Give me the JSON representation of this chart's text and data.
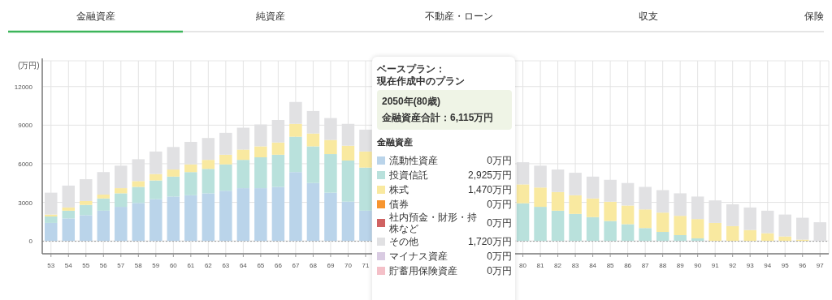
{
  "chart_data": {
    "type": "bar",
    "stacked": true,
    "ylabel": "(万円)",
    "categories": [
      "53",
      "54",
      "55",
      "56",
      "57",
      "58",
      "59",
      "60",
      "61",
      "62",
      "63",
      "64",
      "65",
      "66",
      "67",
      "68",
      "69",
      "70",
      "71",
      null,
      null,
      null,
      null,
      null,
      null,
      null,
      null,
      "80",
      "81",
      "82",
      "83",
      "84",
      "85",
      "86",
      "87",
      "88",
      "89",
      "90",
      "91",
      "92",
      "93",
      "94",
      "95",
      "96",
      "97"
    ],
    "series": [
      {
        "name": "流動性資産",
        "color": "#bad4ea",
        "values": [
          1400,
          1750,
          2000,
          2350,
          2650,
          2950,
          3250,
          3450,
          3550,
          3700,
          3900,
          4100,
          4100,
          4200,
          5350,
          4500,
          3750,
          3050,
          2350,
          null,
          null,
          null,
          null,
          null,
          null,
          null,
          null,
          0,
          0,
          0,
          0,
          0,
          0,
          0,
          0,
          0,
          0,
          0,
          0,
          0,
          0,
          0,
          0,
          0,
          0
        ]
      },
      {
        "name": "投資信託",
        "color": "#b9e1dc",
        "values": [
          500,
          600,
          800,
          950,
          1050,
          1250,
          1450,
          1550,
          1800,
          1900,
          2050,
          2200,
          2400,
          2500,
          2750,
          2850,
          3000,
          3200,
          3350,
          null,
          null,
          null,
          null,
          null,
          null,
          null,
          null,
          2925,
          2650,
          2350,
          2100,
          1850,
          1550,
          1300,
          1000,
          700,
          450,
          200,
          0,
          0,
          0,
          0,
          0,
          0,
          0
        ]
      },
      {
        "name": "株式",
        "color": "#f9e9a0",
        "values": [
          150,
          250,
          300,
          300,
          400,
          450,
          500,
          550,
          600,
          700,
          750,
          800,
          850,
          950,
          1000,
          1000,
          1100,
          1150,
          1250,
          null,
          null,
          null,
          null,
          null,
          null,
          null,
          null,
          1470,
          1500,
          1450,
          1450,
          1450,
          1500,
          1450,
          1450,
          1500,
          1500,
          1500,
          1400,
          1150,
          850,
          600,
          350,
          100,
          0
        ]
      },
      {
        "name": "債券",
        "color": "#f7952f",
        "values": [
          0,
          0,
          0,
          0,
          0,
          0,
          0,
          0,
          0,
          0,
          0,
          0,
          0,
          0,
          0,
          0,
          0,
          0,
          0,
          null,
          null,
          null,
          null,
          null,
          null,
          null,
          null,
          0,
          0,
          0,
          0,
          0,
          0,
          0,
          0,
          0,
          0,
          0,
          0,
          0,
          0,
          0,
          0,
          0,
          0
        ]
      },
      {
        "name": "社内預金・財形・持株など",
        "color": "#d06262",
        "values": [
          0,
          0,
          0,
          0,
          0,
          0,
          0,
          0,
          0,
          0,
          0,
          0,
          0,
          0,
          0,
          0,
          0,
          0,
          0,
          null,
          null,
          null,
          null,
          null,
          null,
          null,
          null,
          0,
          0,
          0,
          0,
          0,
          0,
          0,
          0,
          0,
          0,
          0,
          0,
          0,
          0,
          0,
          0,
          0,
          0
        ]
      },
      {
        "name": "その他",
        "color": "#e1e1e3",
        "values": [
          1700,
          1700,
          1700,
          1750,
          1750,
          1700,
          1750,
          1750,
          1750,
          1700,
          1700,
          1700,
          1700,
          1750,
          1700,
          1750,
          1700,
          1700,
          1700,
          null,
          null,
          null,
          null,
          null,
          null,
          null,
          null,
          1720,
          1700,
          1750,
          1750,
          1700,
          1700,
          1750,
          1750,
          1750,
          1750,
          1750,
          1750,
          1700,
          1750,
          1750,
          1700,
          1700,
          1450
        ]
      },
      {
        "name": "マイナス資産",
        "color": "#d9cbe2",
        "values": [
          0,
          0,
          0,
          0,
          0,
          0,
          0,
          0,
          0,
          0,
          0,
          0,
          0,
          0,
          0,
          0,
          0,
          0,
          0,
          null,
          null,
          null,
          null,
          null,
          null,
          null,
          null,
          0,
          0,
          0,
          0,
          0,
          0,
          0,
          0,
          0,
          0,
          0,
          0,
          0,
          0,
          0,
          0,
          0,
          0
        ]
      },
      {
        "name": "貯蓄用保険資産",
        "color": "#f4c0c8",
        "values": [
          0,
          0,
          0,
          0,
          0,
          0,
          0,
          0,
          0,
          0,
          0,
          0,
          0,
          0,
          0,
          0,
          0,
          0,
          0,
          null,
          null,
          null,
          null,
          null,
          null,
          null,
          null,
          0,
          0,
          0,
          0,
          0,
          0,
          0,
          0,
          0,
          0,
          0,
          0,
          0,
          0,
          0,
          0,
          0,
          0
        ]
      }
    ],
    "ylim": [
      -1000,
      14000
    ],
    "yticks": [
      0,
      3000,
      6000,
      9000,
      12000
    ],
    "grid": true,
    "legend": "bottom",
    "ref_lines": [
      {
        "axis": "y",
        "value": 0,
        "color": "#999999",
        "line_style": "dotted"
      }
    ],
    "annotations": [
      "金融資産",
      "純資産",
      "不動産・ローン",
      "収支",
      "保険",
      "ベースプラン：",
      "現在作成中のプラン",
      "2050年(80歳)",
      "金融資産合計：6,115万円",
      "金融資産",
      "0万円",
      "2,925万円",
      "1,470万円",
      "0万円",
      "0万円",
      "1,720万円",
      "0万円",
      "0万円"
    ]
  }
}
